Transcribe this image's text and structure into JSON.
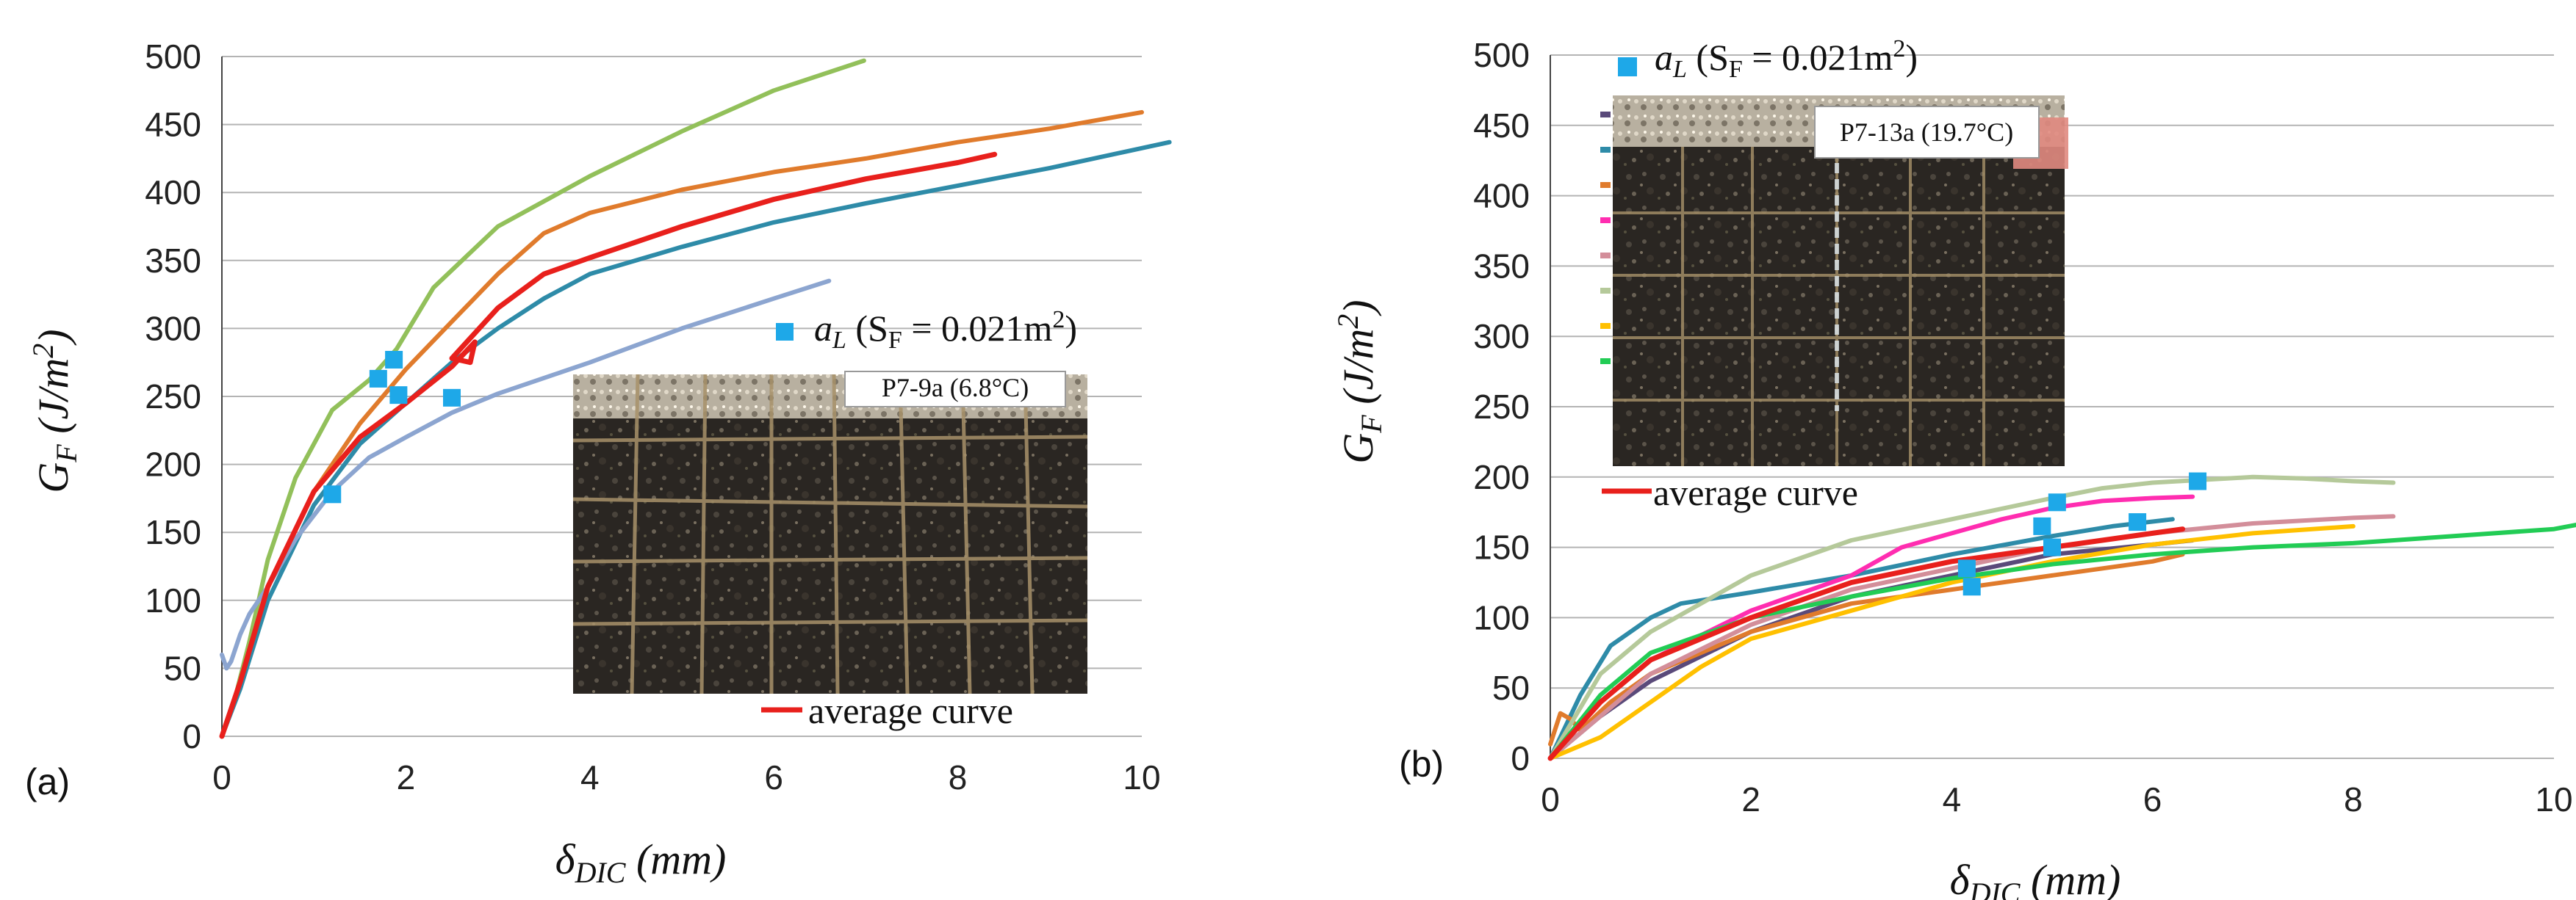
{
  "chart_data": [
    {
      "type": "line",
      "panel_label": "(a)",
      "xlabel": "δ_DIC (mm)",
      "ylabel": "G_F (J/m²)",
      "xlim": [
        0,
        10
      ],
      "ylim": [
        0,
        500
      ],
      "x_ticks": [
        "0",
        "2",
        "4",
        "6",
        "8",
        "10"
      ],
      "y_ticks": [
        "0",
        "50",
        "100",
        "150",
        "200",
        "250",
        "300",
        "350",
        "400",
        "450",
        "500"
      ],
      "grid": "horizontal",
      "legend": {
        "marker_label": "a_L (S_F = 0.021m²)",
        "line_label": "average curve"
      },
      "photo_label": "P7-9a (6.8°C)",
      "series": [
        {
          "color": "#92C05A",
          "x": [
            0,
            0.15,
            0.3,
            0.5,
            0.8,
            1.2,
            1.6,
            1.9,
            2.3,
            3.0,
            4.0,
            5.0,
            6.0,
            6.98
          ],
          "y": [
            0,
            30,
            70,
            130,
            190,
            240,
            262,
            285,
            330,
            375,
            412,
            445,
            475,
            497
          ]
        },
        {
          "color": "#E07B2C",
          "x": [
            0,
            0.2,
            0.5,
            1.0,
            1.5,
            2.0,
            2.5,
            3.0,
            3.5,
            4.0,
            5.0,
            6.0,
            7.0,
            8.0,
            9.0,
            10.0
          ],
          "y": [
            0,
            40,
            110,
            180,
            230,
            270,
            305,
            340,
            370,
            385,
            402,
            415,
            425,
            437,
            447,
            459
          ]
        },
        {
          "color": "#2E8BA8",
          "x": [
            0,
            0.2,
            0.5,
            1.0,
            1.5,
            2.0,
            2.5,
            3.0,
            3.5,
            4.0,
            5.0,
            6.0,
            7.0,
            8.0,
            9.0,
            10.3
          ],
          "y": [
            0,
            35,
            100,
            170,
            215,
            245,
            275,
            300,
            322,
            340,
            360,
            378,
            392,
            405,
            418,
            437
          ]
        },
        {
          "color": "#8CA5D0",
          "x": [
            0,
            0.05,
            0.1,
            0.2,
            0.3,
            0.5,
            0.8,
            1.2,
            1.6,
            2.0,
            2.5,
            3.0,
            4.0,
            5.0,
            6.0,
            6.6
          ],
          "y": [
            60,
            50,
            55,
            75,
            90,
            110,
            145,
            180,
            205,
            220,
            238,
            252,
            275,
            300,
            322,
            335
          ]
        },
        {
          "color": "#E8201C",
          "x": [
            0,
            0.2,
            0.5,
            1.0,
            1.5,
            2.0,
            2.5,
            2.75,
            2.7,
            2.5,
            3.0,
            3.5,
            4.0,
            5.0,
            6.0,
            7.0,
            8.0,
            8.4
          ],
          "y": [
            0,
            40,
            110,
            180,
            220,
            245,
            272,
            290,
            275,
            278,
            315,
            340,
            352,
            375,
            395,
            410,
            422,
            428
          ]
        }
      ],
      "markers": {
        "color": "#1EA8E8",
        "x": [
          1.2,
          1.7,
          1.87,
          1.92,
          2.5
        ],
        "y": [
          178,
          263,
          277,
          251,
          249
        ]
      }
    },
    {
      "type": "line",
      "panel_label": "(b)",
      "xlabel": "δ_DIC (mm)",
      "ylabel": "G_F (J/m²)",
      "xlim": [
        0,
        10
      ],
      "ylim": [
        0,
        500
      ],
      "x_ticks": [
        "0",
        "2",
        "4",
        "6",
        "8",
        "10"
      ],
      "y_ticks": [
        "0",
        "50",
        "100",
        "150",
        "200",
        "250",
        "300",
        "350",
        "400",
        "450",
        "500"
      ],
      "grid": "horizontal",
      "legend": {
        "marker_label": "a_L (S_F = 0.021m²)",
        "line_label": "average curve",
        "swatch_colors": [
          "#5A4A7A",
          "#2E8BA8",
          "#E07B2C",
          "#FF2DB0",
          "#D38E9A",
          "#B5C99A",
          "#FFC000",
          "#22CC55"
        ]
      },
      "photo_label": "P7-13a (19.7°C)",
      "series": [
        {
          "color": "#5A4A7A",
          "x": [
            0,
            0.5,
            1.0,
            2.0,
            3.0,
            4.0,
            5.0,
            6.0,
            6.4
          ],
          "y": [
            0,
            30,
            55,
            90,
            115,
            130,
            145,
            152,
            155
          ]
        },
        {
          "color": "#2E8BA8",
          "x": [
            0,
            0.3,
            0.6,
            1.0,
            1.3,
            2.0,
            3.0,
            4.0,
            5.0,
            5.6,
            6.2
          ],
          "y": [
            0,
            45,
            80,
            100,
            110,
            118,
            130,
            145,
            158,
            165,
            170
          ]
        },
        {
          "color": "#E07B2C",
          "x": [
            0,
            0.1,
            0.2,
            0.3,
            0.6,
            1.0,
            2.0,
            3.0,
            4.0,
            5.0,
            6.0,
            6.3
          ],
          "y": [
            10,
            32,
            28,
            20,
            40,
            60,
            90,
            110,
            120,
            130,
            140,
            145
          ]
        },
        {
          "color": "#FF2DB0",
          "x": [
            0,
            0.5,
            1.0,
            2.0,
            3.0,
            3.5,
            4.0,
            4.5,
            5.0,
            5.5,
            6.0,
            6.4
          ],
          "y": [
            0,
            40,
            70,
            105,
            130,
            150,
            160,
            170,
            178,
            183,
            185,
            186
          ]
        },
        {
          "color": "#D38E9A",
          "x": [
            0,
            1.0,
            2.0,
            3.0,
            4.0,
            5.0,
            6.0,
            7.0,
            8.0,
            8.4
          ],
          "y": [
            0,
            60,
            95,
            120,
            135,
            150,
            160,
            167,
            171,
            172
          ]
        },
        {
          "color": "#B5C99A",
          "x": [
            0,
            0.5,
            1.0,
            2.0,
            3.0,
            4.0,
            5.0,
            5.5,
            6.0,
            7.0,
            7.5,
            8.0,
            8.4
          ],
          "y": [
            0,
            60,
            90,
            130,
            155,
            170,
            185,
            192,
            196,
            200,
            199,
            197,
            196
          ]
        },
        {
          "color": "#FFC000",
          "x": [
            0,
            0.5,
            1.0,
            1.5,
            2.0,
            3.0,
            4.0,
            5.0,
            6.0,
            7.0,
            8.0
          ],
          "y": [
            0,
            15,
            40,
            65,
            85,
            105,
            125,
            140,
            152,
            160,
            165
          ]
        },
        {
          "color": "#22CC55",
          "x": [
            0,
            0.5,
            1.0,
            2.0,
            3.0,
            4.0,
            5.0,
            6.0,
            7.0,
            8.0,
            9.0,
            10.0,
            10.3
          ],
          "y": [
            0,
            45,
            75,
            100,
            115,
            128,
            138,
            145,
            150,
            153,
            158,
            163,
            167
          ]
        },
        {
          "color": "#E8201C",
          "x": [
            0,
            0.5,
            1.0,
            2.0,
            3.0,
            4.0,
            5.0,
            6.0,
            6.3
          ],
          "y": [
            0,
            40,
            70,
            100,
            125,
            140,
            150,
            160,
            163
          ]
        }
      ],
      "markers": {
        "color": "#1EA8E8",
        "x": [
          4.15,
          4.2,
          4.9,
          5.0,
          5.05,
          5.85,
          6.45
        ],
        "y": [
          135,
          122,
          165,
          150,
          182,
          168,
          197
        ]
      }
    }
  ]
}
